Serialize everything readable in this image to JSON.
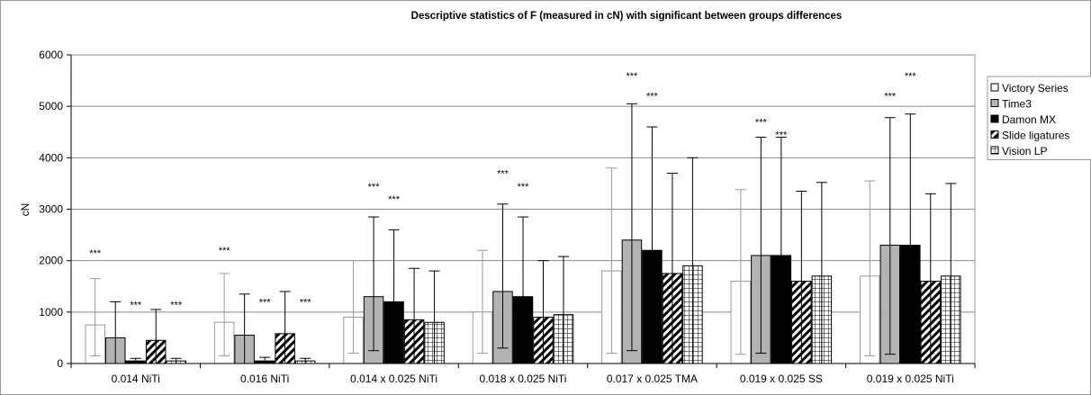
{
  "chart_data": {
    "type": "bar",
    "title": "Descriptive statistics of F (measured in cN) with significant between groups differences",
    "ylabel": "cN",
    "xlabel": "",
    "ylim": [
      0,
      6000
    ],
    "yticks": [
      0,
      1000,
      2000,
      3000,
      4000,
      5000,
      6000
    ],
    "grid": true,
    "legend_position": "right",
    "categories": [
      "0.014 NiTi",
      "0.016 NiTi",
      "0.014 x 0.025 NiTi",
      "0.018 x 0.025 NiTi",
      "0.017 x 0.025 TMA",
      "0.019 x 0.025 SS",
      "0.019 x 0.025 NiTi"
    ],
    "series": [
      {
        "name": "Victory Series",
        "fill": "white",
        "values": [
          750,
          800,
          900,
          1000,
          1800,
          1600,
          1700
        ],
        "err_high": [
          1650,
          1750,
          2000,
          2200,
          3800,
          3380,
          3550
        ],
        "err_low": [
          150,
          150,
          200,
          200,
          200,
          180,
          150
        ]
      },
      {
        "name": "Time3",
        "fill": "gray",
        "values": [
          500,
          550,
          1300,
          1400,
          2400,
          2100,
          2300
        ],
        "err_high": [
          1200,
          1350,
          2850,
          3100,
          5050,
          4400,
          4780
        ],
        "err_low": [
          0,
          0,
          250,
          300,
          250,
          200,
          180
        ]
      },
      {
        "name": "Damon MX",
        "fill": "black",
        "values": [
          50,
          50,
          1200,
          1300,
          2200,
          2100,
          2300
        ],
        "err_high": [
          100,
          120,
          2600,
          2850,
          4600,
          4400,
          4850
        ],
        "err_low": [
          0,
          0,
          0,
          0,
          0,
          0,
          0
        ]
      },
      {
        "name": "Slide ligatures",
        "fill": "diagonal",
        "values": [
          450,
          580,
          850,
          900,
          1750,
          1600,
          1600
        ],
        "err_high": [
          1050,
          1400,
          1850,
          2000,
          3700,
          3350,
          3300
        ],
        "err_low": [
          0,
          0,
          0,
          0,
          0,
          0,
          0
        ]
      },
      {
        "name": "Vision LP",
        "fill": "grid",
        "values": [
          50,
          50,
          800,
          950,
          1900,
          1700,
          1700
        ],
        "err_high": [
          100,
          100,
          1800,
          2080,
          4000,
          3520,
          3500
        ],
        "err_low": [
          0,
          0,
          0,
          0,
          0,
          0,
          0
        ]
      }
    ],
    "significance": [
      {
        "category": 0,
        "series": 0,
        "y": 2150,
        "label": "***"
      },
      {
        "category": 0,
        "series": 2,
        "y": 1150,
        "label": "***"
      },
      {
        "category": 0,
        "series": 4,
        "y": 1150,
        "label": "***"
      },
      {
        "category": 1,
        "series": 0,
        "y": 2200,
        "label": "***"
      },
      {
        "category": 1,
        "series": 2,
        "y": 1200,
        "label": "***"
      },
      {
        "category": 1,
        "series": 4,
        "y": 1200,
        "label": "***"
      },
      {
        "category": 2,
        "series": 1,
        "y": 3450,
        "label": "***"
      },
      {
        "category": 2,
        "series": 2,
        "y": 3200,
        "label": "***"
      },
      {
        "category": 3,
        "series": 1,
        "y": 3700,
        "label": "***"
      },
      {
        "category": 3,
        "series": 2,
        "y": 3450,
        "label": "***"
      },
      {
        "category": 4,
        "series": 1,
        "y": 5600,
        "label": "***"
      },
      {
        "category": 4,
        "series": 2,
        "y": 5200,
        "label": "***"
      },
      {
        "category": 5,
        "series": 1,
        "y": 4700,
        "label": "***"
      },
      {
        "category": 5,
        "series": 2,
        "y": 4450,
        "label": "***"
      },
      {
        "category": 6,
        "series": 1,
        "y": 5200,
        "label": "***"
      },
      {
        "category": 6,
        "series": 2,
        "y": 5600,
        "label": "***"
      }
    ]
  }
}
